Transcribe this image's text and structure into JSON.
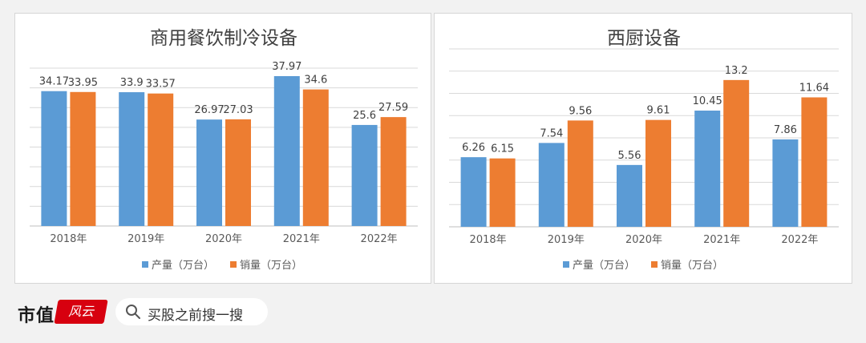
{
  "chart_data": [
    {
      "type": "bar",
      "title": "商用餐饮制冷设备",
      "categories": [
        "2018年",
        "2019年",
        "2020年",
        "2021年",
        "2022年"
      ],
      "series": [
        {
          "name": "产量（万台）",
          "values": [
            34.17,
            33.9,
            26.97,
            37.97,
            25.6
          ],
          "color": "#5b9bd5"
        },
        {
          "name": "销量（万台）",
          "values": [
            33.95,
            33.57,
            27.03,
            34.6,
            27.59
          ],
          "color": "#ed7d31"
        }
      ],
      "data_labels": [
        [
          "34.17",
          "33.9",
          "26.97",
          "37.97",
          "25.6"
        ],
        [
          "33.95",
          "33.57",
          "27.03",
          "34.6",
          "27.59"
        ]
      ],
      "ylim": [
        0,
        40
      ],
      "grid": true,
      "legend_position": "bottom"
    },
    {
      "type": "bar",
      "title": "西厨设备",
      "categories": [
        "2018年",
        "2019年",
        "2020年",
        "2021年",
        "2022年"
      ],
      "series": [
        {
          "name": "产量（万台）",
          "values": [
            6.26,
            7.54,
            5.56,
            10.45,
            7.86
          ],
          "color": "#5b9bd5"
        },
        {
          "name": "销量（万台）",
          "values": [
            6.15,
            9.56,
            9.61,
            13.2,
            11.64
          ],
          "color": "#ed7d31"
        }
      ],
      "data_labels": [
        [
          "6.26",
          "7.54",
          "5.56",
          "10.45",
          "7.86"
        ],
        [
          "6.15",
          "9.56",
          "9.61",
          "13.2",
          "11.64"
        ]
      ],
      "ylim": [
        0,
        16
      ],
      "grid": true,
      "legend_position": "bottom"
    }
  ],
  "footer": {
    "brand_text": "市值",
    "brand_logo_text": "风云",
    "search_text": "买股之前搜一搜",
    "search_icon": "search-icon"
  }
}
